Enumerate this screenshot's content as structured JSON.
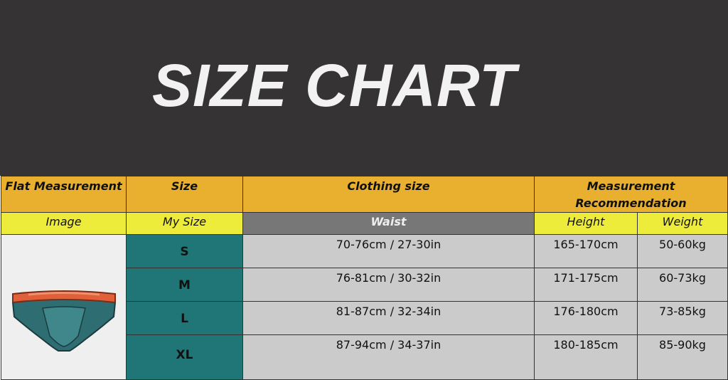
{
  "title": "SIZE CHART",
  "headers": {
    "flat_measurement": "Flat Measurement",
    "size": "Size",
    "clothing_size": "Clothing size",
    "measurement_recommendation": "Measurement Recommendation"
  },
  "subheaders": {
    "image": "Image",
    "my_size": "My Size",
    "waist": "Waist",
    "height": "Height",
    "weight": "Weight"
  },
  "rows": [
    {
      "size": "S",
      "waist": "70-76cm / 27-30in",
      "height": "165-170cm",
      "weight": "50-60kg"
    },
    {
      "size": "M",
      "waist": "76-81cm / 30-32in",
      "height": "171-175cm",
      "weight": "60-73kg"
    },
    {
      "size": "L",
      "waist": "81-87cm / 32-34in",
      "height": "176-180cm",
      "weight": "73-85kg"
    },
    {
      "size": "XL",
      "waist": "87-94cm / 34-37in",
      "height": "180-185cm",
      "weight": "85-90kg"
    }
  ],
  "colors": {
    "header": "#e8b02e",
    "subheader": "#eeec3b",
    "size_cell": "#207676",
    "banner": "#353334"
  }
}
